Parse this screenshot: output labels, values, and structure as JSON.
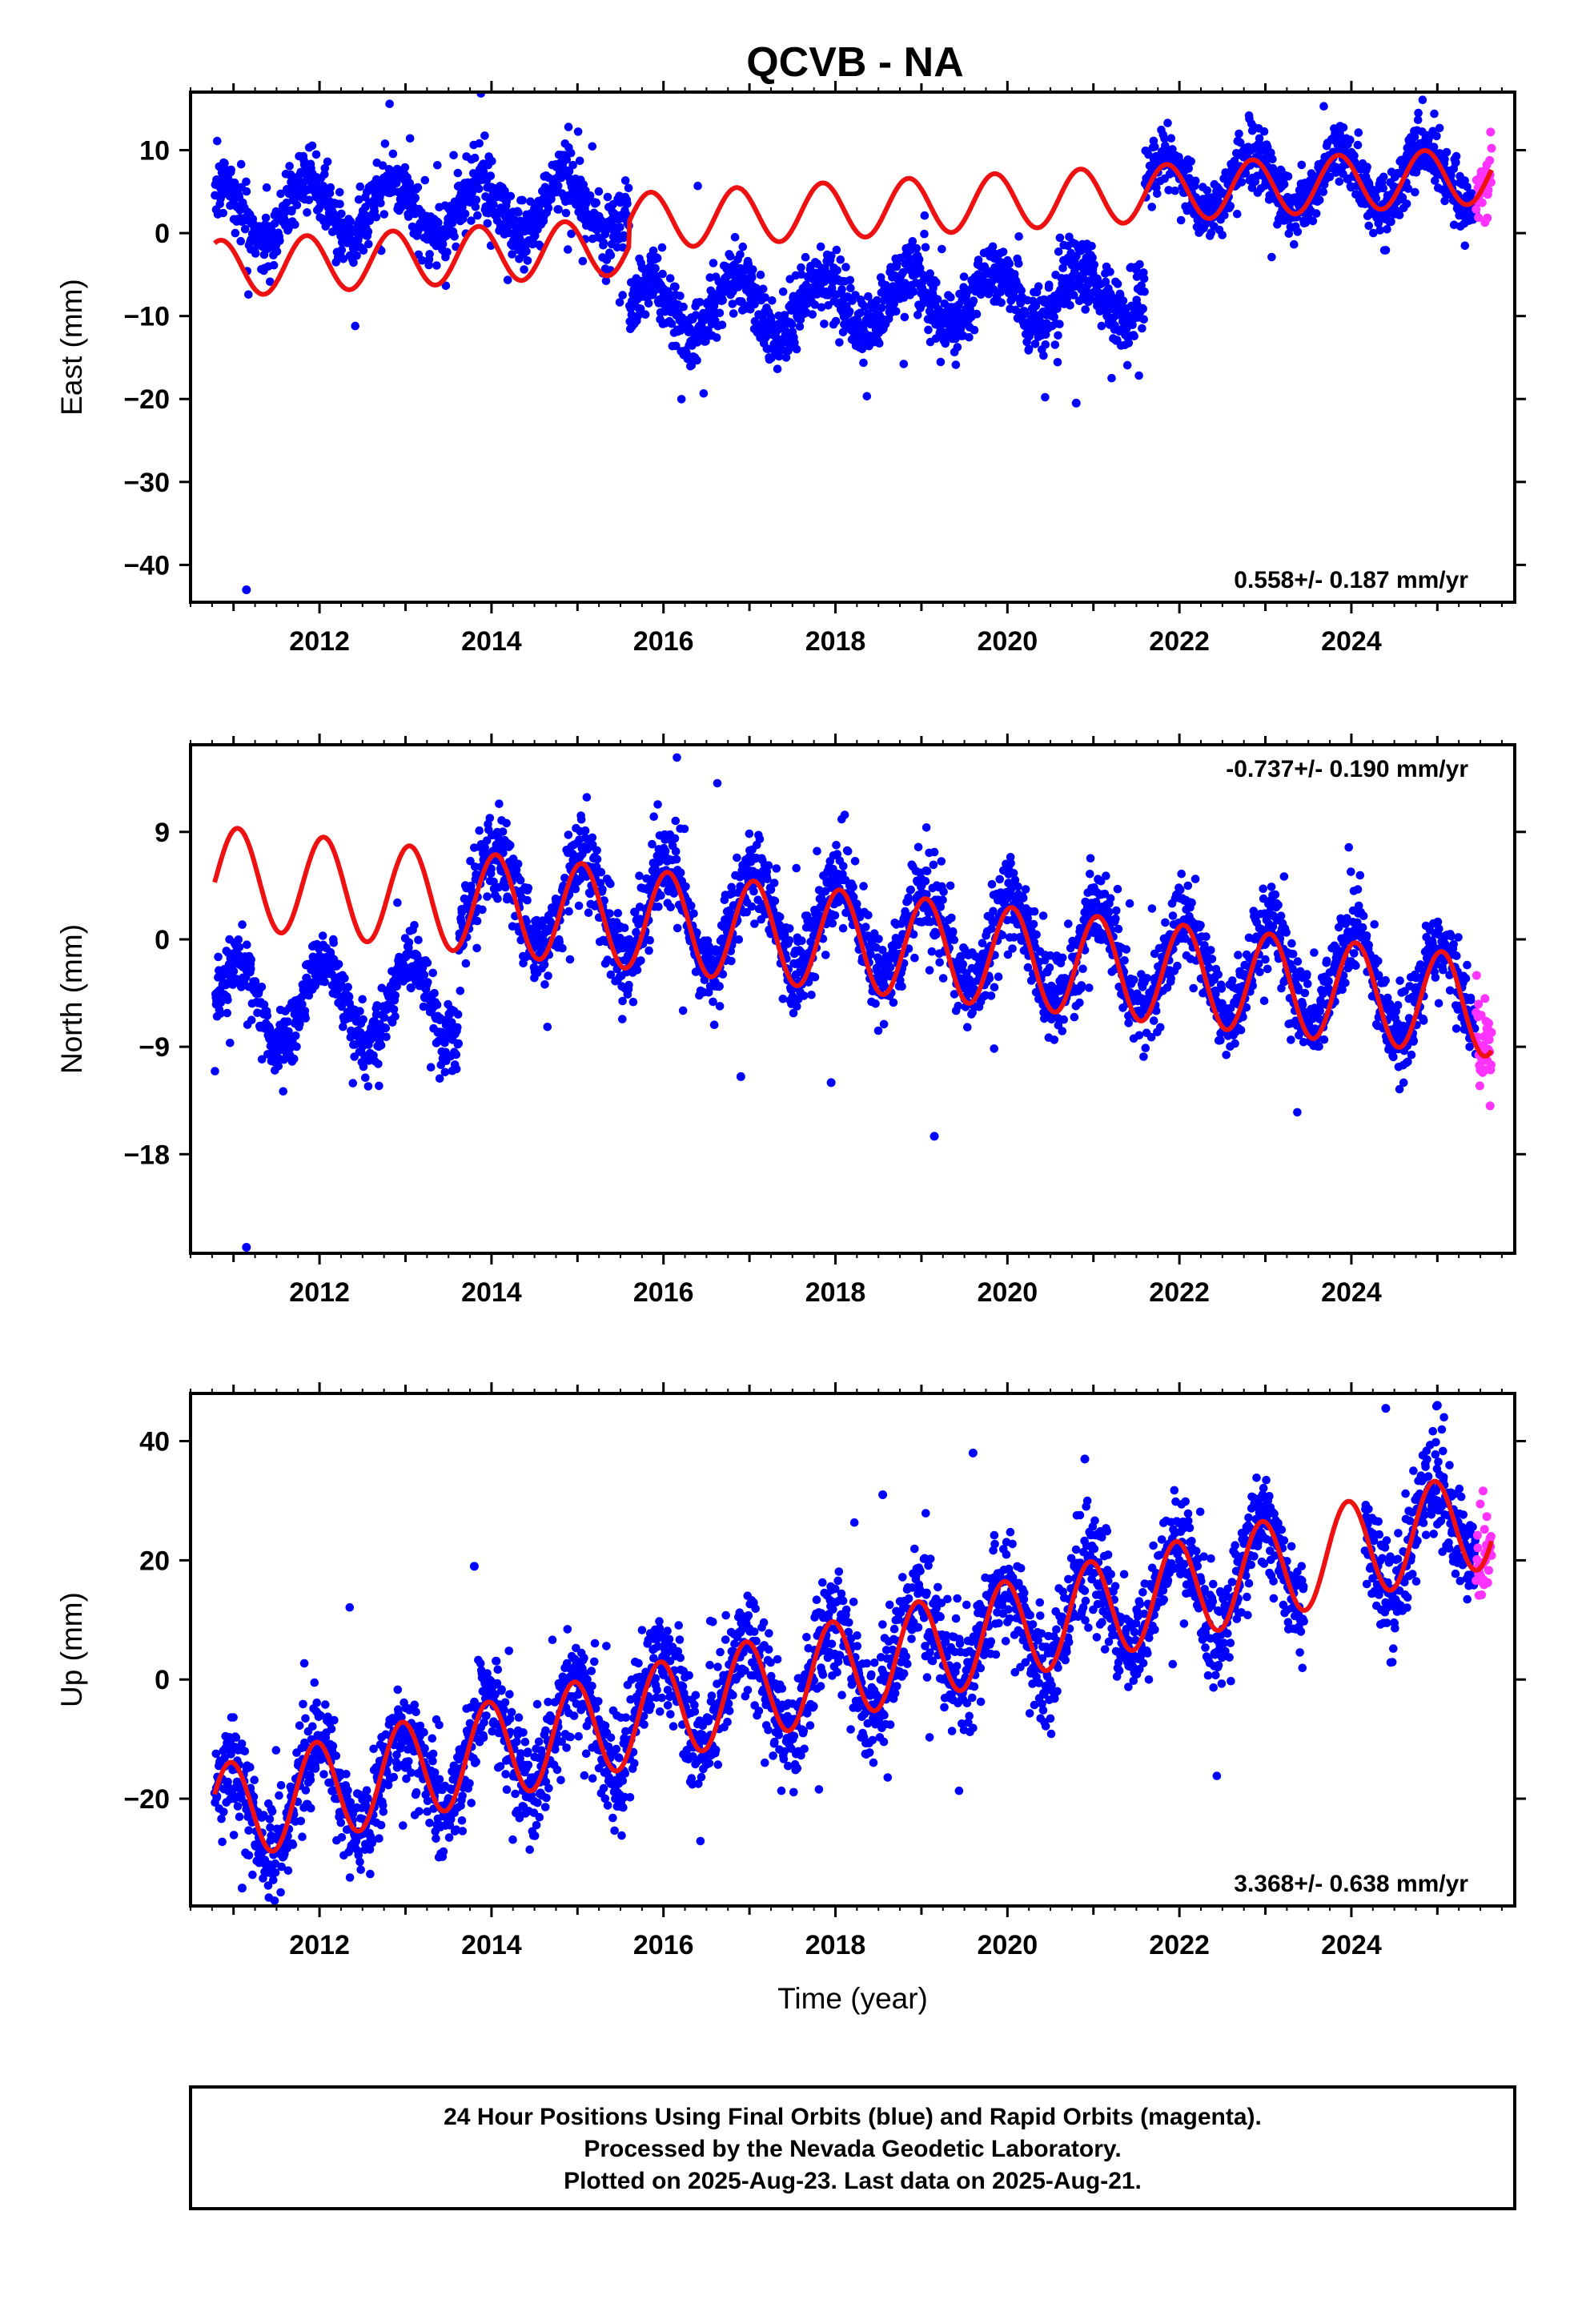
{
  "figure": {
    "title": "QCVB - NA",
    "footer_lines": [
      "24 Hour Positions Using Final Orbits (blue) and Rapid Orbits (magenta).",
      "Processed by the Nevada Geodetic Laboratory.",
      "Plotted on 2025-Aug-23. Last data on 2025-Aug-21."
    ],
    "colors": {
      "final_orbits": "#0000ff",
      "rapid_orbits": "#ff33ff",
      "model": "#ee1111",
      "frame": "#000000"
    }
  },
  "chart_data": [
    {
      "type": "scatter",
      "panel": "east",
      "title": "",
      "xlabel": "",
      "ylabel": "East (mm)",
      "xlim": [
        2010.5,
        2025.9
      ],
      "ylim": [
        -44.5,
        17
      ],
      "x_ticks": [
        2012,
        2014,
        2016,
        2018,
        2020,
        2022,
        2024
      ],
      "y_ticks": [
        10,
        0,
        -10,
        -20,
        -30,
        -40
      ],
      "y_tick_labels": [
        "10",
        "0",
        "−10",
        "−20",
        "−30",
        "−40"
      ],
      "rate_text": "0.558+/- 0.187 mm/yr",
      "rate_text_position": "bottom-right",
      "data_range": [
        2010.78,
        2025.45
      ],
      "rapid_range": [
        2025.45,
        2025.63
      ],
      "segments": [
        {
          "from": 2010.78,
          "to": 2015.6,
          "offset": 2.4,
          "slope": 0.2,
          "amplitude": 3.5,
          "phase": 0.6,
          "noise": 1.9
        },
        {
          "from": 2015.6,
          "to": 2021.6,
          "offset": -9.2,
          "slope": 0.35,
          "amplitude": 3.5,
          "phase": 0.6,
          "noise": 2.0
        },
        {
          "from": 2021.6,
          "to": 2025.63,
          "offset": 5.5,
          "slope": 0.4,
          "amplitude": 3.5,
          "phase": 0.6,
          "noise": 1.7
        }
      ],
      "model": {
        "intercept": -4.3,
        "slope": 0.558,
        "amplitude": 3.4,
        "phase": 0.6,
        "jumps": [
          [
            2015.6,
            3.0
          ]
        ]
      },
      "outliers": [
        [
          2011.15,
          -43.0
        ],
        [
          2020.8,
          -20.5
        ]
      ],
      "n_points": 3000
    },
    {
      "type": "scatter",
      "panel": "north",
      "title": "",
      "xlabel": "",
      "ylabel": "North (mm)",
      "xlim": [
        2010.5,
        2025.9
      ],
      "ylim": [
        -26.3,
        16.3
      ],
      "x_ticks": [
        2012,
        2014,
        2016,
        2018,
        2020,
        2022,
        2024
      ],
      "y_ticks": [
        9,
        0,
        -9,
        -18
      ],
      "y_tick_labels": [
        "9",
        "0",
        "−9",
        "−18"
      ],
      "rate_text": "-0.737+/- 0.190 mm/yr",
      "rate_text_position": "top-right",
      "data_range": [
        2010.78,
        2025.45
      ],
      "rapid_range": [
        2025.45,
        2025.63
      ],
      "segments": [
        {
          "from": 2010.78,
          "to": 2013.62,
          "offset": -5.3,
          "slope": 0.0,
          "amplitude": 3.6,
          "phase": 0.8,
          "noise": 1.3
        },
        {
          "from": 2013.62,
          "to": 2025.63,
          "offset": 4.0,
          "slope": -0.74,
          "amplitude": 4.1,
          "phase": 0.8,
          "noise": 1.7
        }
      ],
      "model": {
        "intercept": 5.3,
        "slope": -0.737,
        "amplitude": 4.2,
        "phase": 0.8,
        "jumps": []
      },
      "outliers": [
        [
          2011.15,
          -25.8
        ],
        [
          2019.15,
          -16.5
        ],
        [
          2016.9,
          -11.5
        ],
        [
          2017.95,
          -12.0
        ]
      ],
      "n_points": 3000
    },
    {
      "type": "scatter",
      "panel": "up",
      "title": "",
      "xlabel": "Time (year)",
      "ylabel": "Up (mm)",
      "xlim": [
        2010.5,
        2025.9
      ],
      "ylim": [
        -38,
        48
      ],
      "x_ticks": [
        2012,
        2014,
        2016,
        2018,
        2020,
        2022,
        2024
      ],
      "y_ticks": [
        40,
        20,
        0,
        -20
      ],
      "y_tick_labels": [
        "40",
        "20",
        "0",
        "−20"
      ],
      "rate_text": "3.368+/- 0.638 mm/yr",
      "rate_text_position": "bottom-right",
      "data_range": [
        2010.78,
        2025.45
      ],
      "rapid_range": [
        2025.45,
        2025.63
      ],
      "data_gap": [
        2023.45,
        2024.15
      ],
      "segments": [
        {
          "from": 2010.78,
          "to": 2025.63,
          "offset": -22.8,
          "slope": 3.37,
          "amplitude": 8.3,
          "phase": 0.71,
          "noise": 4.3
        }
      ],
      "model": {
        "intercept": -22.8,
        "slope": 3.368,
        "amplitude": 8.3,
        "phase": 0.71,
        "jumps": []
      },
      "outliers": [
        [
          2013.8,
          19.0
        ],
        [
          2019.6,
          38.0
        ],
        [
          2020.9,
          37.0
        ],
        [
          2024.4,
          45.5
        ],
        [
          2025.0,
          46.0
        ],
        [
          2018.55,
          31.0
        ],
        [
          2011.1,
          -35.0
        ]
      ],
      "n_points": 3000
    }
  ]
}
